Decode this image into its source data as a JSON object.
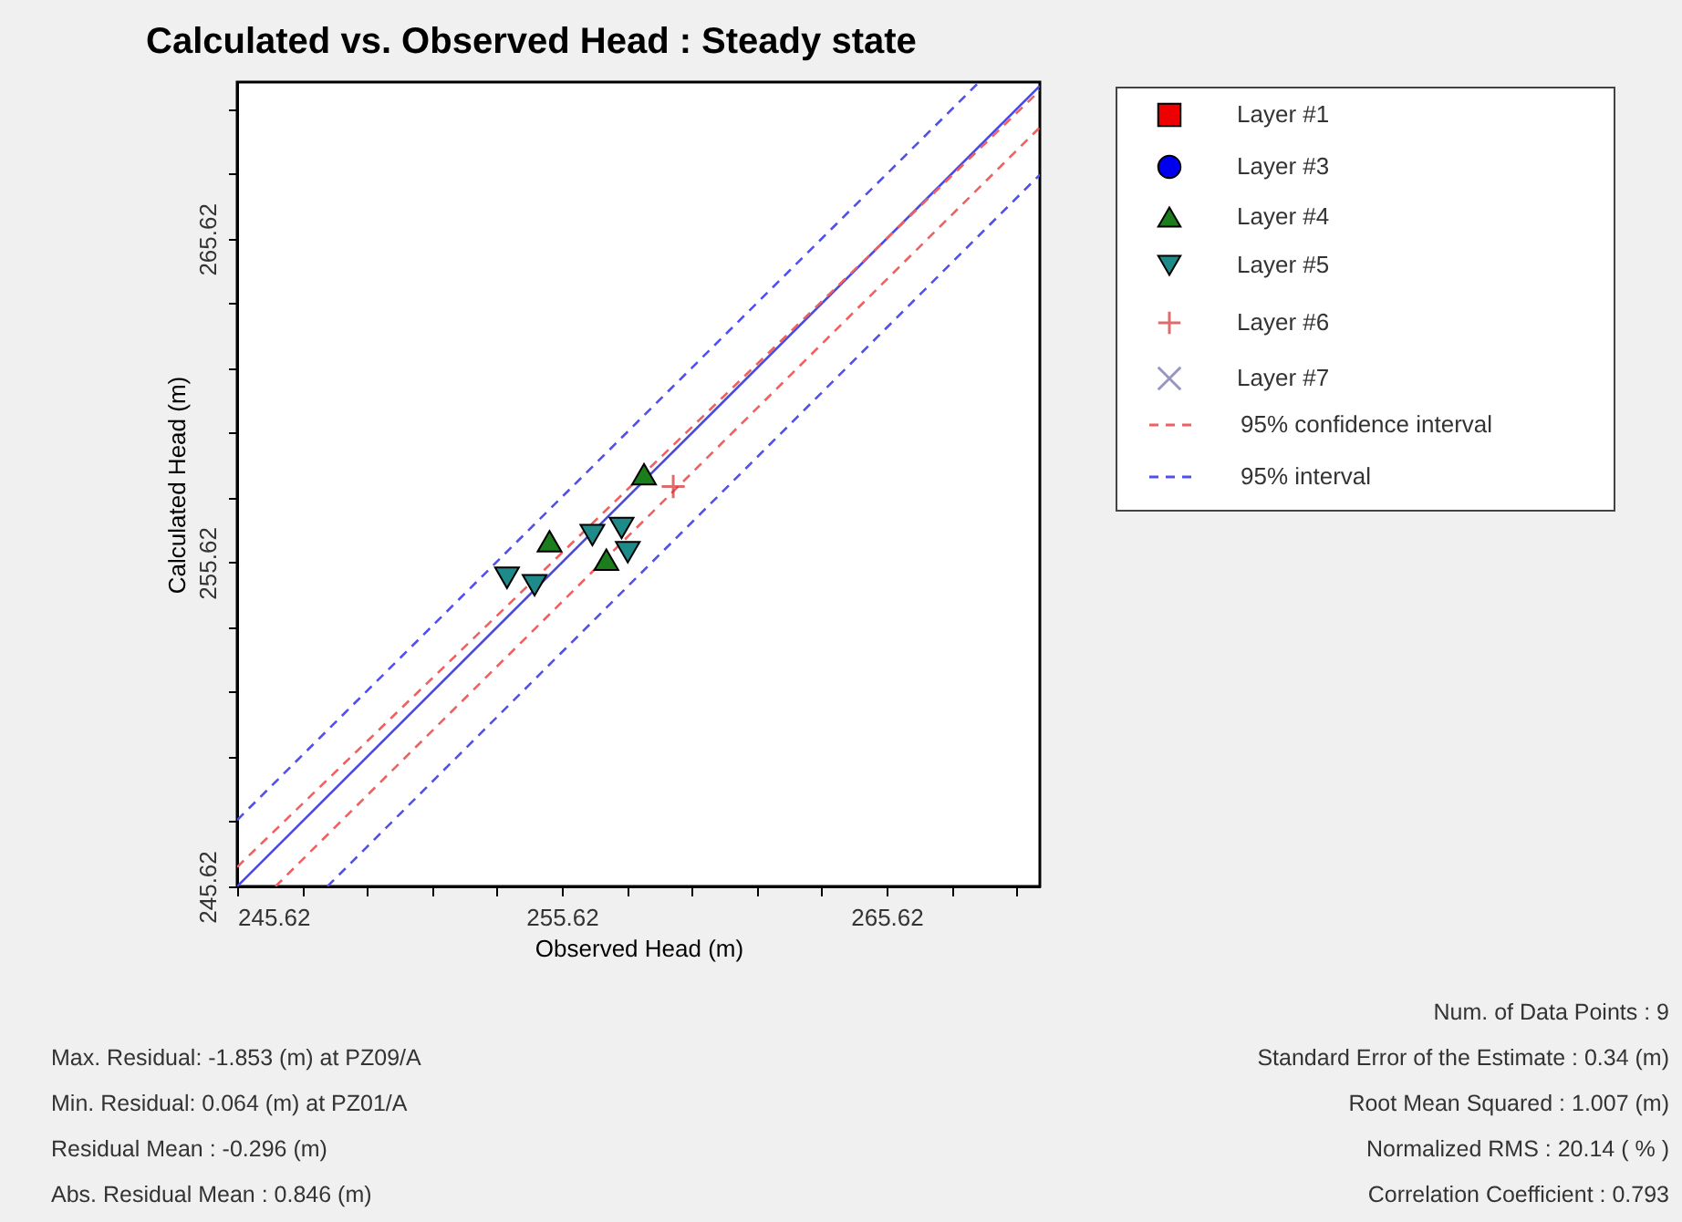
{
  "chart_data": {
    "type": "scatter",
    "title": "Calculated vs. Observed Head : Steady state",
    "xlabel": "Observed Head (m)",
    "ylabel": "Calculated Head (m)",
    "xlim": [
      245.62,
      270.34
    ],
    "ylim": [
      245.62,
      270.46
    ],
    "xticks": [
      245.62,
      {
        "value": 247.62,
        "label": null
      },
      {
        "value": 249.62,
        "label": null
      },
      {
        "value": 251.62,
        "label": null
      },
      {
        "value": 253.62,
        "label": null
      },
      255.62,
      {
        "value": 257.62,
        "label": null
      },
      {
        "value": 259.62,
        "label": null
      },
      {
        "value": 261.62,
        "label": null
      },
      {
        "value": 263.62,
        "label": null
      },
      265.62,
      {
        "value": 267.62,
        "label": null
      },
      {
        "value": 269.62,
        "label": null
      }
    ],
    "yticks": [
      245.62,
      {
        "value": 247.62,
        "label": null
      },
      {
        "value": 249.62,
        "label": null
      },
      {
        "value": 251.62,
        "label": null
      },
      {
        "value": 253.62,
        "label": null
      },
      255.62,
      {
        "value": 257.62,
        "label": null
      },
      {
        "value": 259.62,
        "label": null
      },
      {
        "value": 261.62,
        "label": null
      },
      {
        "value": 263.62,
        "label": null
      },
      265.62,
      {
        "value": 267.62,
        "label": null
      },
      {
        "value": 269.62,
        "label": null
      }
    ],
    "grid": false,
    "legend": "top right",
    "series": [
      {
        "name": "Layer #1",
        "color": "#ee0000",
        "marker": "square"
      },
      {
        "name": "Layer #3",
        "color": "#0000ee",
        "marker": "circle"
      },
      {
        "name": "Layer #4",
        "color": "#1c7d1c",
        "marker": "triangle",
        "x": [
          258.15,
          255.24,
          256.99
        ],
        "values": [
          258.35,
          256.28,
          255.71
        ]
      },
      {
        "name": "Layer #5",
        "color": "#1e8a8a",
        "marker": "triangle-down",
        "x": [
          253.93,
          254.78,
          256.56,
          257.46,
          257.65
        ],
        "values": [
          255.15,
          254.92,
          256.47,
          256.69,
          255.94
        ]
      },
      {
        "name": "Layer #6",
        "color": "#d03030",
        "marker": "cross",
        "x": [
          259.05
        ],
        "values": [
          257.97
        ]
      },
      {
        "name": "Layer #7",
        "color": "#6a6aa8",
        "marker": "x"
      },
      {
        "type": "line",
        "color": "#4a4ae0",
        "line_style": "solid",
        "x": [
          245.62,
          270.34
        ],
        "values": [
          245.62,
          270.34
        ]
      },
      {
        "type": "line",
        "name": "95% confidence interval",
        "color": "#f06060",
        "line_style": "dashed",
        "x": [
          245.62,
          270.34
        ],
        "values": [
          246.22,
          270.2
        ]
      },
      {
        "type": "line",
        "color": "#f06060",
        "line_style": "dashed",
        "x": [
          246.8,
          270.34
        ],
        "values": [
          245.62,
          269.06
        ]
      },
      {
        "type": "line",
        "name": "95% interval",
        "color": "#5050f0",
        "line_style": "dashed",
        "x": [
          245.62,
          268.47
        ],
        "values": [
          247.67,
          270.46
        ]
      },
      {
        "type": "line",
        "color": "#5050f0",
        "line_style": "dashed",
        "x": [
          248.4,
          270.34
        ],
        "values": [
          245.62,
          267.6
        ]
      }
    ],
    "annotations": [
      "Max. Residual: -1.853 (m) at PZ09/A",
      "Min. Residual: 0.064 (m) at PZ01/A",
      "Residual Mean : -0.296 (m)",
      "Abs. Residual Mean : 0.846 (m)",
      "Num. of Data Points : 9",
      "Standard Error of the Estimate : 0.34 (m)",
      "Root Mean Squared : 1.007 (m)",
      "Normalized RMS : 20.14 ( % )",
      "Correlation Coefficient : 0.793"
    ]
  }
}
